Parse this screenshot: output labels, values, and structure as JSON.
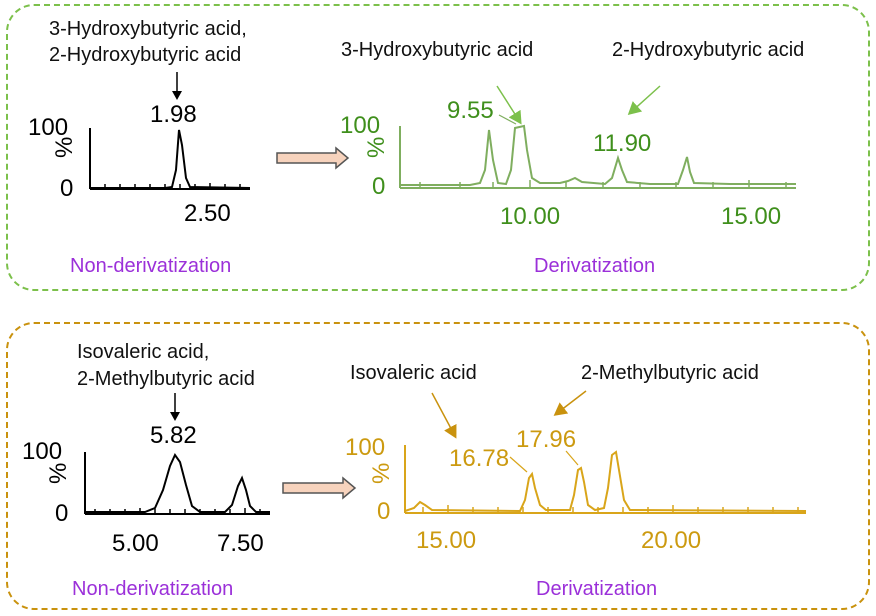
{
  "colors": {
    "green_border": "#7cc04b",
    "gold_border": "#c9920e",
    "green_trace": "#7fae5f",
    "green_text": "#3f8f1c",
    "gold_trace": "#d9a51a",
    "gold_text": "#cc9a10",
    "purple": "#9b30d9",
    "black": "#000000",
    "arrow_fill": "#f7d3bd",
    "arrow_stroke": "#555555"
  },
  "panel1": {
    "left": {
      "label_line1": "3-Hydroxybutyric acid,",
      "label_line2": "2-Hydroxybutyric acid",
      "peak_label": "1.98",
      "y_top": "100",
      "y_bottom": "0",
      "y_unit": "%",
      "x_tick": "2.50",
      "caption": "Non-derivatization"
    },
    "right": {
      "label_a": "3-Hydroxybutyric acid",
      "label_b": "2-Hydroxybutyric acid",
      "peak_a": "9.55",
      "peak_b": "11.90",
      "y_top": "100",
      "y_bottom": "0",
      "y_unit": "%",
      "x_tick_1": "10.00",
      "x_tick_2": "15.00",
      "caption": "Derivatization"
    }
  },
  "panel2": {
    "left": {
      "label_line1": "Isovaleric acid,",
      "label_line2": "2-Methylbutyric acid",
      "peak_label": "5.82",
      "y_top": "100",
      "y_bottom": "0",
      "y_unit": "%",
      "x_tick_1": "5.00",
      "x_tick_2": "7.50",
      "caption": "Non-derivatization"
    },
    "right": {
      "label_a": "Isovaleric acid",
      "label_b": "2-Methylbutyric acid",
      "peak_a": "16.78",
      "peak_b": "17.96",
      "y_top": "100",
      "y_bottom": "0",
      "y_unit": "%",
      "x_tick_1": "15.00",
      "x_tick_2": "20.00",
      "caption": "Derivatization"
    }
  }
}
